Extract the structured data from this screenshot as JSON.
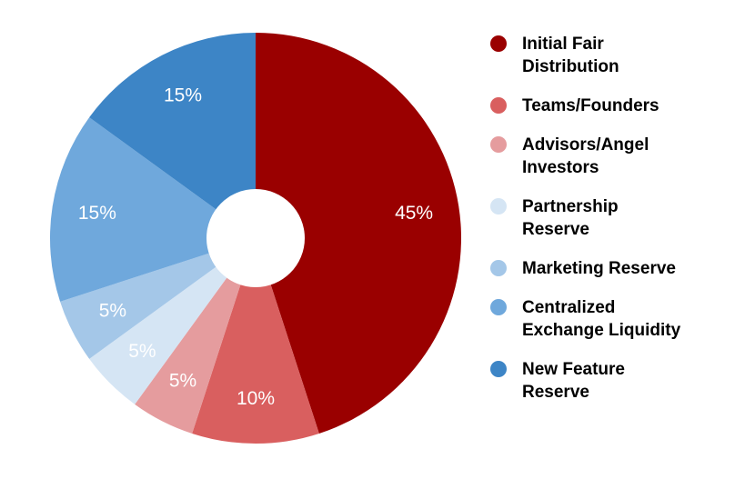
{
  "chart_data": {
    "type": "pie",
    "subtype": "donut",
    "title": "",
    "categories": [
      "Initial Fair Distribution",
      "Teams/Founders",
      "Advisors/Angel Investors",
      "Partnership Reserve",
      "Marketing Reserve",
      "Centralized Exchange Liquidity",
      "New Feature Reserve"
    ],
    "values": [
      45,
      10,
      5,
      5,
      5,
      15,
      15
    ],
    "slice_labels": [
      "45%",
      "10%",
      "5%",
      "5%",
      "5%",
      "15%",
      "15%"
    ],
    "colors": [
      "#9A0000",
      "#D95F5F",
      "#E59C9E",
      "#D5E5F4",
      "#A4C7E8",
      "#6FA8DC",
      "#3D85C6"
    ],
    "label_color": "#FFFFFF",
    "background": "#FFFFFF",
    "start_angle_deg": 0,
    "direction": "clockwise",
    "donut_hole_ratio": 0.24,
    "legend_position": "right",
    "legend_text_color": "#000000"
  },
  "legend": {
    "items": [
      {
        "label": "Initial Fair Distribution",
        "lines": [
          "Initial Fair",
          "Distribution"
        ],
        "color": "#9A0000"
      },
      {
        "label": "Teams/Founders",
        "lines": [
          "Teams/Founders"
        ],
        "color": "#D95F5F"
      },
      {
        "label": "Advisors/Angel Investors",
        "lines": [
          "Advisors/Angel",
          "Investors"
        ],
        "color": "#E59C9E"
      },
      {
        "label": "Partnership Reserve",
        "lines": [
          "Partnership",
          "Reserve"
        ],
        "color": "#D5E5F4"
      },
      {
        "label": "Marketing Reserve",
        "lines": [
          "Marketing Reserve"
        ],
        "color": "#A4C7E8"
      },
      {
        "label": "Centralized Exchange Liquidity",
        "lines": [
          "Centralized",
          "Exchange Liquidity"
        ],
        "color": "#6FA8DC"
      },
      {
        "label": "New Feature Reserve",
        "lines": [
          "New Feature",
          "Reserve"
        ],
        "color": "#3D85C6"
      }
    ]
  }
}
